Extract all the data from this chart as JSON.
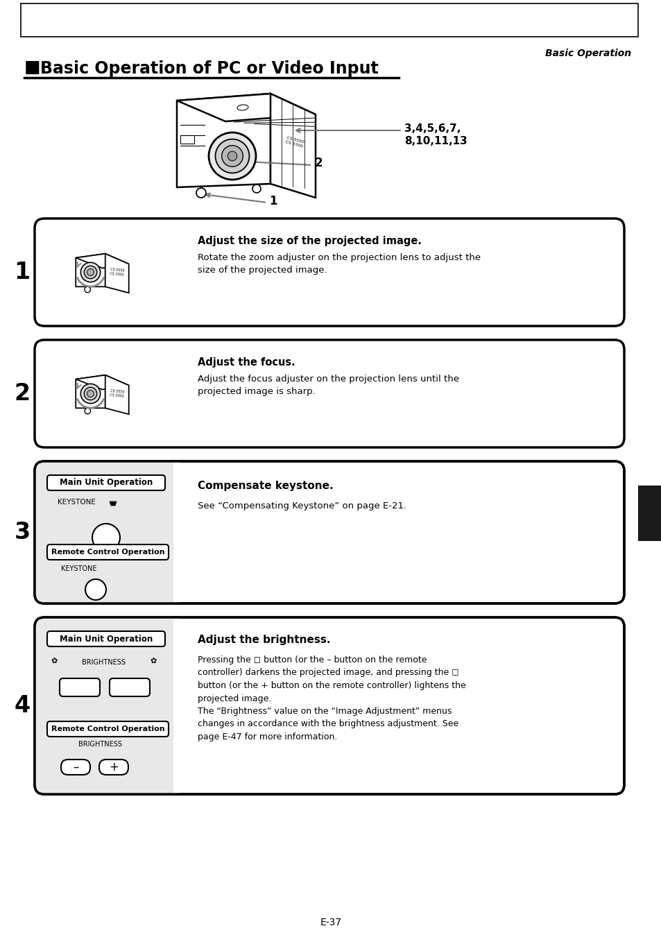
{
  "page_title": "Basic Operation of PC or Video Input",
  "header_text": "Basic Operation",
  "footer_text": "E-37",
  "background_color": "#ffffff",
  "text_color": "#000000",
  "gray_panel_color": "#e8e8e8",
  "sidebar_color": "#1a1a1a",
  "sections": [
    {
      "number": "1",
      "title": "Adjust the size of the projected image.",
      "body": "Rotate the zoom adjuster on the projection lens to adjust the\nsize of the projected image.",
      "type": "lens"
    },
    {
      "number": "2",
      "title": "Adjust the focus.",
      "body": "Adjust the focus adjuster on the projection lens until the\nprojected image is sharp.",
      "type": "lens"
    },
    {
      "number": "3",
      "title": "Compensate keystone.",
      "body": "See “Compensating Keystone” on page E-21.",
      "type": "keystone"
    },
    {
      "number": "4",
      "title": "Adjust the brightness.",
      "body": "Pressing the ◻ button (or the – button on the remote\ncontroller) darkens the projected image, and pressing the ◻\nbutton (or the + button on the remote controller) lightens the\nprojected image.\nThe “Brightness” value on the “Image Adjustment” menus\nchanges in accordance with the brightness adjustment. See\npage E-47 for more information.",
      "type": "brightness"
    }
  ]
}
